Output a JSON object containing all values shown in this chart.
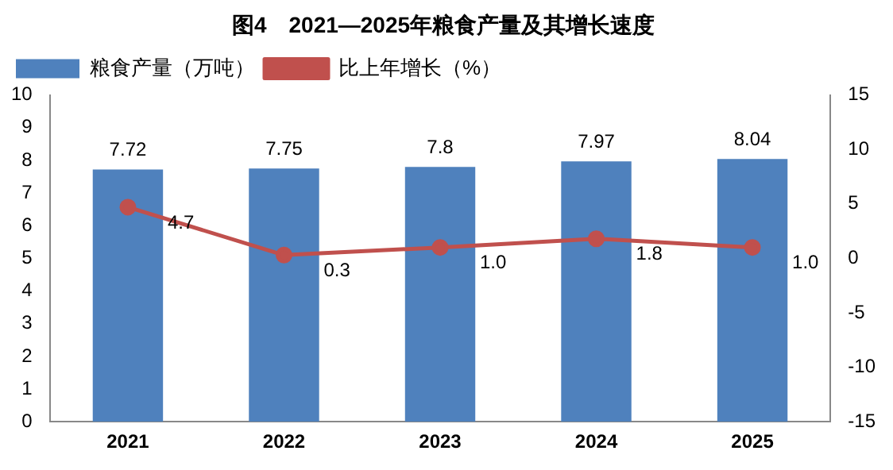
{
  "chart_data": {
    "type": "bar",
    "title": "图4　2021—2025年粮食产量及其增长速度",
    "categories": [
      "2021",
      "2022",
      "2023",
      "2024",
      "2025"
    ],
    "series": [
      {
        "name": "粮食产量（万吨）",
        "color": "#4f81bd",
        "values": [
          7.72,
          7.75,
          7.8,
          7.97,
          8.04
        ],
        "value_labels": [
          "7.72",
          "7.75",
          "7.8",
          "7.97",
          "8.04"
        ]
      },
      {
        "name": "比上年增长（%）",
        "type": "line",
        "axis": "y2",
        "color": "#c0504d",
        "values": [
          4.7,
          0.3,
          1.0,
          1.8,
          1.0
        ],
        "value_labels": [
          "4.7",
          "0.3",
          "1.0",
          "1.8",
          "1.0"
        ]
      }
    ],
    "ylim": [
      0,
      10
    ],
    "yticks": [
      0,
      1,
      2,
      3,
      4,
      5,
      6,
      7,
      8,
      9,
      10
    ],
    "y2lim": [
      -15,
      15
    ],
    "y2ticks": [
      -15,
      -10,
      -5,
      0,
      5,
      10,
      15
    ],
    "grid": false,
    "legend": "top left",
    "marker": "circle",
    "line_style": "solid"
  }
}
